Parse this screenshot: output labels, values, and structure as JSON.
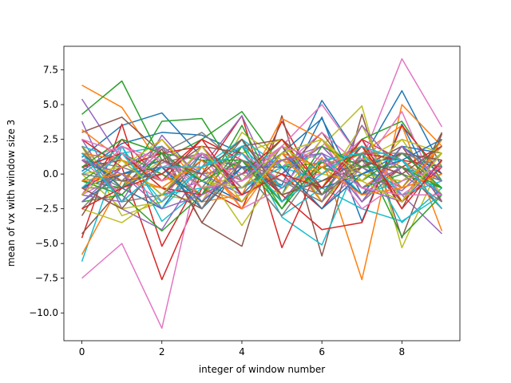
{
  "chart_data": {
    "type": "line",
    "title": "",
    "xlabel": "integer of window number",
    "ylabel": "mean of vx with window size 3",
    "xlim": [
      -0.45,
      9.45
    ],
    "ylim": [
      -12.0,
      9.2
    ],
    "x": [
      0,
      1,
      2,
      3,
      4,
      5,
      6,
      7,
      8,
      9
    ],
    "xticks": [
      0,
      2,
      4,
      6,
      8
    ],
    "yticks": [
      -10.0,
      -7.5,
      -5.0,
      -2.5,
      0.0,
      2.5,
      5.0,
      7.5
    ],
    "xtick_labels": [
      "0",
      "2",
      "4",
      "6",
      "8"
    ],
    "ytick_labels": [
      "−10.0",
      "−7.5",
      "−5.0",
      "−2.5",
      "0.0",
      "2.5",
      "5.0",
      "7.5"
    ],
    "grid": false,
    "legend": "none",
    "colors": [
      "#1f77b4",
      "#ff7f0e",
      "#2ca02c",
      "#d62728",
      "#9467bd",
      "#8c564b",
      "#e377c2",
      "#7f7f7f",
      "#bcbd22",
      "#17becf"
    ],
    "series": [
      {
        "values": [
          1.2,
          3.5,
          4.4,
          1.2,
          0.5,
          -0.8,
          5.3,
          1.0,
          6.0,
          0.5
        ]
      },
      {
        "values": [
          6.4,
          4.8,
          0.5,
          -1.5,
          1.0,
          -2.0,
          1.2,
          -7.6,
          5.0,
          2.0
        ]
      },
      {
        "values": [
          4.3,
          6.7,
          1.0,
          2.5,
          4.5,
          0.5,
          0.8,
          2.0,
          -1.0,
          2.5
        ]
      },
      {
        "values": [
          -1.0,
          0.5,
          -7.6,
          -1.0,
          -2.5,
          3.8,
          -1.5,
          2.5,
          1.0,
          -2.5
        ]
      },
      {
        "values": [
          5.4,
          1.0,
          -1.5,
          -0.5,
          2.0,
          0.5,
          -2.5,
          0.5,
          -1.5,
          -4.3
        ]
      },
      {
        "values": [
          3.0,
          4.1,
          1.5,
          -3.5,
          -5.2,
          4.2,
          -5.9,
          4.3,
          -4.6,
          2.9
        ]
      },
      {
        "values": [
          -7.5,
          -5.0,
          -11.1,
          1.5,
          0.0,
          2.0,
          5.0,
          1.0,
          8.3,
          3.4
        ]
      },
      {
        "values": [
          0.5,
          -1.0,
          0.8,
          1.5,
          -0.5,
          1.5,
          -1.5,
          2.0,
          0.5,
          -0.5
        ]
      },
      {
        "values": [
          2.0,
          -3.0,
          -2.0,
          0.5,
          -3.7,
          0.5,
          2.0,
          4.9,
          -5.3,
          1.0
        ]
      },
      {
        "values": [
          -6.3,
          2.0,
          -3.4,
          -1.0,
          2.5,
          -3.1,
          -5.1,
          1.5,
          -3.5,
          -1.0
        ]
      },
      {
        "values": [
          0.2,
          2.2,
          3.0,
          2.8,
          1.5,
          -1.5,
          4.1,
          -3.4,
          3.6,
          -2.0
        ]
      },
      {
        "values": [
          -5.8,
          -0.5,
          2.5,
          -1.0,
          -2.0,
          1.0,
          0.0,
          1.5,
          3.5,
          -4.1
        ]
      },
      {
        "values": [
          -0.5,
          -1.0,
          3.8,
          4.0,
          -0.5,
          2.5,
          -1.5,
          2.5,
          3.8,
          -0.5
        ]
      },
      {
        "values": [
          -4.6,
          3.6,
          -5.2,
          0.0,
          4.2,
          -5.3,
          1.0,
          -1.5,
          0.5,
          2.0
        ]
      },
      {
        "values": [
          3.8,
          -2.5,
          -4.0,
          0.5,
          4.2,
          -2.0,
          1.5,
          0.0,
          -1.2,
          1.5
        ]
      },
      {
        "values": [
          -4.3,
          -1.0,
          1.8,
          -3.5,
          1.0,
          0.0,
          3.0,
          -1.0,
          0.5,
          -2.5
        ]
      },
      {
        "values": [
          -1.5,
          0.0,
          -2.0,
          2.0,
          -1.0,
          0.5,
          3.0,
          0.5,
          4.5,
          -2.0
        ]
      },
      {
        "values": [
          1.0,
          0.5,
          1.5,
          -1.0,
          2.5,
          -1.0,
          0.5,
          1.0,
          -2.0,
          1.0
        ]
      },
      {
        "values": [
          -2.5,
          -3.5,
          -1.5,
          -2.0,
          3.0,
          1.0,
          -1.0,
          3.5,
          -2.0,
          0.5
        ]
      },
      {
        "values": [
          0.5,
          1.5,
          2.0,
          -2.5,
          0.5,
          -3.0,
          -1.0,
          -2.5,
          -3.4,
          -1.5
        ]
      },
      {
        "values": [
          1.5,
          -1.0,
          -2.5,
          1.5,
          -1.5,
          1.5,
          4.0,
          -1.5,
          2.0,
          1.5
        ]
      },
      {
        "values": [
          3.2,
          1.0,
          0.0,
          -2.0,
          -1.5,
          4.0,
          2.5,
          -1.0,
          1.0,
          -1.0
        ]
      },
      {
        "values": [
          -2.0,
          -1.5,
          -4.1,
          -1.5,
          3.5,
          -2.0,
          0.5,
          1.5,
          -4.5,
          -1.5
        ]
      },
      {
        "values": [
          -1.5,
          2.5,
          -0.5,
          2.5,
          1.0,
          -1.5,
          -4.0,
          -3.5,
          3.5,
          0.0
        ]
      },
      {
        "values": [
          2.5,
          -2.0,
          2.8,
          -0.5,
          -2.0,
          2.0,
          -2.0,
          3.5,
          0.0,
          -2.0
        ]
      },
      {
        "values": [
          -3.0,
          1.5,
          -1.0,
          -2.5,
          2.0,
          2.5,
          0.0,
          2.0,
          -2.5,
          3.0
        ]
      },
      {
        "values": [
          1.0,
          2.0,
          0.5,
          1.5,
          -2.5,
          -1.0,
          2.5,
          -2.0,
          1.5,
          1.0
        ]
      },
      {
        "values": [
          -1.0,
          -1.0,
          1.5,
          3.0,
          0.5,
          -3.0,
          1.0,
          0.5,
          -1.0,
          0.0
        ]
      },
      {
        "values": [
          0.0,
          -2.5,
          -2.0,
          0.5,
          1.5,
          2.5,
          -2.0,
          1.0,
          2.5,
          -1.5
        ]
      },
      {
        "values": [
          2.0,
          1.0,
          -1.5,
          -1.0,
          -1.0,
          0.5,
          1.5,
          -1.5,
          -0.5,
          1.5
        ]
      },
      {
        "values": [
          -2.0,
          0.0,
          1.0,
          -0.5,
          -2.0,
          1.5,
          -1.0,
          0.0,
          1.5,
          -0.5
        ]
      },
      {
        "values": [
          1.5,
          -0.5,
          -1.0,
          1.0,
          1.0,
          -1.0,
          0.5,
          2.0,
          -2.0,
          2.5
        ]
      },
      {
        "values": [
          -0.5,
          1.5,
          0.0,
          -1.5,
          2.0,
          -2.5,
          1.0,
          -1.0,
          0.0,
          -1.0
        ]
      },
      {
        "values": [
          2.5,
          0.5,
          1.5,
          2.0,
          -1.5,
          0.0,
          -2.5,
          1.5,
          1.0,
          0.5
        ]
      },
      {
        "values": [
          -1.5,
          -2.0,
          0.5,
          0.0,
          0.5,
          1.0,
          2.0,
          -1.0,
          -2.0,
          1.0
        ]
      },
      {
        "values": [
          0.5,
          1.0,
          -1.5,
          1.0,
          -0.5,
          2.0,
          -1.5,
          0.5,
          2.0,
          -2.0
        ]
      },
      {
        "values": [
          1.0,
          -1.5,
          2.0,
          -2.0,
          1.5,
          -0.5,
          0.0,
          2.5,
          -1.5,
          0.5
        ]
      },
      {
        "values": [
          -2.5,
          0.5,
          -0.5,
          1.5,
          -1.0,
          1.0,
          1.5,
          -2.0,
          0.5,
          -0.5
        ]
      },
      {
        "values": [
          2.0,
          -1.0,
          1.0,
          -1.0,
          0.0,
          -1.5,
          2.5,
          0.0,
          -0.5,
          1.5
        ]
      },
      {
        "values": [
          0.0,
          2.0,
          -2.5,
          0.5,
          2.5,
          0.5,
          -0.5,
          1.0,
          1.0,
          -1.5
        ]
      },
      {
        "values": [
          -1.0,
          0.0,
          0.5,
          -2.5,
          0.5,
          -1.0,
          1.0,
          -1.5,
          2.0,
          0.0
        ]
      },
      {
        "values": [
          1.5,
          1.0,
          -0.5,
          0.5,
          -2.0,
          1.5,
          -2.0,
          1.5,
          -1.0,
          2.0
        ]
      },
      {
        "values": [
          -0.5,
          -1.5,
          1.5,
          1.0,
          1.0,
          -2.0,
          0.5,
          -0.5,
          1.5,
          -1.0
        ]
      },
      {
        "values": [
          0.5,
          1.5,
          -1.0,
          -1.5,
          0.0,
          2.5,
          -1.0,
          2.0,
          -2.0,
          0.5
        ]
      },
      {
        "values": [
          -2.0,
          0.5,
          2.0,
          0.0,
          -1.5,
          0.0,
          2.0,
          -1.0,
          0.5,
          -1.5
        ]
      },
      {
        "values": [
          1.0,
          -0.5,
          0.0,
          2.0,
          1.5,
          -1.5,
          -0.5,
          0.5,
          1.5,
          1.0
        ]
      },
      {
        "values": [
          -1.5,
          2.0,
          1.0,
          -1.0,
          -0.5,
          1.0,
          1.5,
          -2.5,
          -0.5,
          0.5
        ]
      },
      {
        "values": [
          2.0,
          -2.0,
          -1.5,
          1.5,
          0.5,
          -0.5,
          -1.5,
          1.0,
          0.0,
          -2.0
        ]
      },
      {
        "values": [
          0.0,
          0.5,
          2.5,
          -0.5,
          -1.0,
          2.0,
          0.0,
          -0.5,
          2.5,
          1.5
        ]
      },
      {
        "values": [
          -1.0,
          1.5,
          -2.0,
          0.5,
          2.0,
          -1.0,
          1.0,
          1.5,
          -1.5,
          -0.5
        ]
      },
      {
        "values": [
          1.5,
          -1.0,
          0.5,
          -2.0,
          0.5,
          0.5,
          -2.5,
          0.0,
          1.0,
          2.5
        ]
      },
      {
        "values": [
          -0.5,
          0.0,
          -1.0,
          1.0,
          -2.5,
          1.5,
          0.5,
          -1.5,
          -1.0,
          0.0
        ]
      },
      {
        "values": [
          0.5,
          2.5,
          1.5,
          -0.5,
          1.0,
          -2.5,
          2.0,
          0.5,
          0.5,
          -1.0
        ]
      },
      {
        "values": [
          -2.5,
          -1.0,
          0.0,
          2.5,
          -1.5,
          0.0,
          -1.0,
          2.5,
          -2.5,
          1.0
        ]
      },
      {
        "values": [
          1.0,
          0.0,
          -2.5,
          -1.5,
          0.0,
          1.0,
          1.5,
          -2.0,
          2.0,
          -0.5
        ]
      },
      {
        "values": [
          -1.0,
          -2.5,
          1.0,
          0.0,
          2.5,
          -1.5,
          -0.5,
          1.0,
          0.0,
          2.0
        ]
      },
      {
        "values": [
          2.5,
          1.5,
          -0.5,
          1.5,
          -0.5,
          2.0,
          1.0,
          -1.0,
          -1.5,
          -1.5
        ]
      },
      {
        "values": [
          0.0,
          -0.5,
          2.0,
          -2.5,
          1.0,
          -0.5,
          -2.0,
          1.5,
          1.5,
          0.5
        ]
      },
      {
        "values": [
          -1.5,
          1.0,
          -1.5,
          2.0,
          -2.0,
          1.5,
          2.5,
          -0.5,
          -2.0,
          1.5
        ]
      },
      {
        "values": [
          1.5,
          -2.0,
          0.5,
          0.5,
          1.5,
          -2.0,
          0.0,
          2.0,
          1.0,
          -2.5
        ]
      }
    ]
  }
}
